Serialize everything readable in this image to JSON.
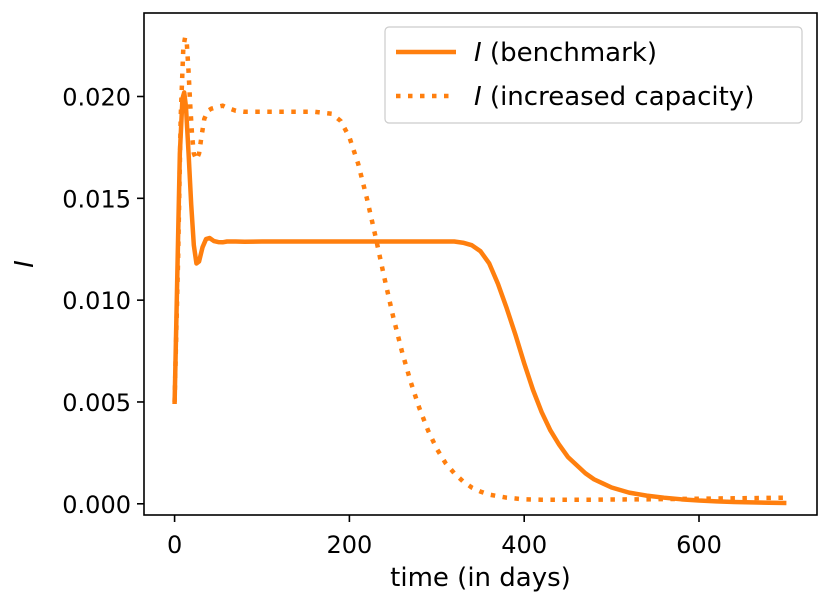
{
  "chart_data": {
    "type": "line",
    "title": "",
    "xlabel": "time (in days)",
    "ylabel": "I",
    "xlim": [
      -35,
      735
    ],
    "ylim": [
      -0.00055,
      0.0241
    ],
    "xticks": [
      0,
      200,
      400,
      600
    ],
    "xtick_labels": [
      "0",
      "200",
      "400",
      "600"
    ],
    "yticks": [
      0.0,
      0.005,
      0.01,
      0.015,
      0.02
    ],
    "ytick_labels": [
      "0.000",
      "0.005",
      "0.010",
      "0.015",
      "0.020"
    ],
    "grid": false,
    "legend": {
      "placement": "upper right",
      "entries": [
        {
          "symbol": "I",
          "text": " (benchmark)"
        },
        {
          "symbol": "I",
          "text": " (increased capacity)"
        }
      ]
    },
    "series": [
      {
        "name": "I (benchmark)",
        "style": "solid",
        "color": "#ff7f0e",
        "x": [
          0,
          3,
          6,
          9,
          11,
          13,
          16,
          19,
          22,
          25,
          28,
          32,
          36,
          40,
          45,
          50,
          55,
          60,
          70,
          80,
          100,
          150,
          200,
          250,
          300,
          320,
          330,
          340,
          350,
          360,
          370,
          380,
          390,
          400,
          410,
          420,
          430,
          440,
          450,
          460,
          470,
          480,
          490,
          500,
          520,
          540,
          560,
          580,
          600,
          620,
          640,
          660,
          680,
          700
        ],
        "y": [
          0.0049,
          0.011,
          0.0172,
          0.0199,
          0.0202,
          0.0195,
          0.0172,
          0.0147,
          0.0127,
          0.0118,
          0.0119,
          0.0126,
          0.013,
          0.01305,
          0.0129,
          0.01285,
          0.01284,
          0.01288,
          0.01288,
          0.01287,
          0.01288,
          0.01288,
          0.01288,
          0.01288,
          0.01288,
          0.01288,
          0.01282,
          0.0127,
          0.0124,
          0.0118,
          0.0108,
          0.0096,
          0.0083,
          0.0069,
          0.0056,
          0.0045,
          0.0036,
          0.0029,
          0.0023,
          0.0019,
          0.0015,
          0.0012,
          0.001,
          0.0008,
          0.00055,
          0.0004,
          0.0003,
          0.00022,
          0.00016,
          0.00012,
          9e-05,
          7e-05,
          5e-05,
          4e-05
        ]
      },
      {
        "name": "I (increased capacity)",
        "style": "dotted",
        "color": "#ff7f0e",
        "x": [
          0,
          4,
          7,
          10,
          12,
          14,
          16,
          18,
          20,
          22,
          25,
          28,
          31,
          34,
          38,
          42,
          46,
          50,
          55,
          60,
          70,
          80,
          100,
          130,
          160,
          180,
          190,
          200,
          210,
          220,
          230,
          240,
          250,
          260,
          270,
          280,
          290,
          300,
          310,
          320,
          330,
          340,
          350,
          360,
          380,
          400,
          420,
          440,
          460,
          480,
          500,
          540,
          580,
          620,
          660,
          700
        ],
        "y": [
          0.005,
          0.012,
          0.019,
          0.0224,
          0.0229,
          0.0226,
          0.0212,
          0.0195,
          0.0181,
          0.0172,
          0.0169,
          0.0172,
          0.0181,
          0.0189,
          0.0193,
          0.0194,
          0.01945,
          0.0195,
          0.01955,
          0.01945,
          0.0193,
          0.01925,
          0.01925,
          0.01925,
          0.01925,
          0.01915,
          0.0188,
          0.018,
          0.0167,
          0.015,
          0.0131,
          0.0111,
          0.0092,
          0.0075,
          0.006,
          0.0047,
          0.0036,
          0.0027,
          0.002,
          0.0015,
          0.0011,
          0.0008,
          0.0006,
          0.00045,
          0.0003,
          0.00022,
          0.0002,
          0.0002,
          0.0002,
          0.0002,
          0.00021,
          0.00022,
          0.00024,
          0.00026,
          0.00028,
          0.0003
        ]
      }
    ]
  }
}
